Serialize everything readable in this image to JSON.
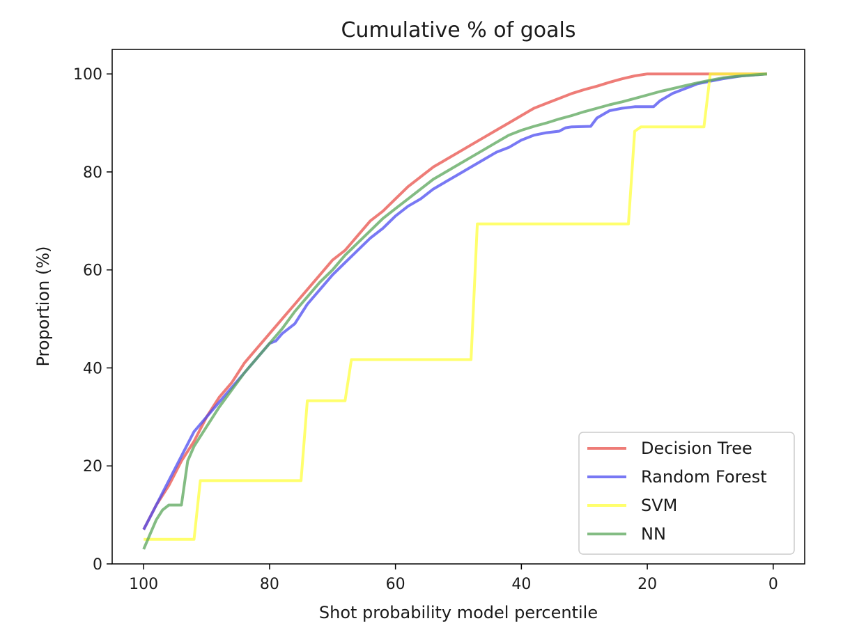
{
  "chart_data": {
    "type": "line",
    "title": "Cumulative % of goals",
    "xlabel": "Shot probability model percentile",
    "ylabel": "Proportion (%)",
    "xlim": [
      105,
      -5
    ],
    "ylim": [
      0,
      105
    ],
    "x_reversed": true,
    "xticks": [
      100,
      80,
      60,
      40,
      20,
      0
    ],
    "yticks": [
      0,
      20,
      40,
      60,
      80,
      100
    ],
    "grid": false,
    "legend_position": "lower-right",
    "series": [
      {
        "name": "Decision Tree",
        "color": "#e8504a",
        "x": [
          100,
          98,
          96,
          94,
          92,
          90,
          88,
          86,
          84,
          82,
          80,
          78,
          76,
          74,
          72,
          70,
          68,
          67,
          66,
          64,
          62,
          60,
          58,
          56,
          54,
          52,
          50,
          48,
          46,
          44,
          42,
          40,
          38,
          36,
          34,
          32,
          30,
          28,
          26,
          24,
          22,
          20,
          18,
          15,
          10,
          5,
          1
        ],
        "y": [
          7,
          12,
          16,
          21,
          25,
          30,
          34,
          37,
          41,
          44,
          47,
          50,
          53,
          56,
          59,
          62,
          64,
          65.5,
          67,
          70,
          72,
          74.5,
          77,
          79,
          81,
          82.5,
          84,
          85.5,
          87,
          88.5,
          90,
          91.5,
          93,
          94,
          95,
          96,
          96.8,
          97.5,
          98.3,
          99,
          99.6,
          100,
          100,
          100,
          100,
          100,
          100
        ]
      },
      {
        "name": "Random Forest",
        "color": "#4b4bf0",
        "x": [
          100,
          98,
          96,
          94,
          92,
          90,
          88,
          86,
          84,
          82,
          80,
          79,
          78,
          76,
          74,
          72,
          70,
          68,
          66,
          64,
          62,
          60,
          58,
          56,
          54,
          52,
          50,
          48,
          46,
          44,
          42,
          40,
          38,
          36,
          34,
          33,
          32,
          29,
          28,
          26,
          24,
          22,
          21,
          19,
          18,
          16,
          14,
          12,
          10,
          8,
          5,
          1
        ],
        "y": [
          7,
          12,
          17,
          22,
          27,
          30,
          33,
          36,
          39,
          42,
          45,
          45.5,
          47,
          49,
          53,
          56,
          59,
          61.5,
          64,
          66.5,
          68.5,
          71,
          73,
          74.5,
          76.5,
          78,
          79.5,
          81,
          82.5,
          84,
          85,
          86.5,
          87.5,
          88,
          88.3,
          89,
          89.2,
          89.3,
          91,
          92.5,
          93,
          93.3,
          93.3,
          93.3,
          94.5,
          96,
          97,
          98,
          98.5,
          99,
          99.6,
          100
        ]
      },
      {
        "name": "SVM",
        "color": "#ffff3c",
        "x": [
          100,
          92,
          91,
          75,
          74,
          68,
          67,
          48,
          47,
          23,
          22,
          21,
          11,
          10,
          1
        ],
        "y": [
          5,
          5,
          17,
          17,
          33.3,
          33.3,
          41.7,
          41.7,
          69.4,
          69.4,
          88.3,
          89.2,
          89.2,
          100,
          100
        ]
      },
      {
        "name": "NN",
        "color": "#5aa55a",
        "x": [
          100,
          99,
          98,
          97,
          96,
          94,
          93,
          92,
          90,
          88,
          86,
          84,
          82,
          80,
          78,
          76,
          74,
          72,
          70,
          68,
          66,
          64,
          62,
          60,
          58,
          56,
          54,
          52,
          50,
          48,
          46,
          44,
          42,
          40,
          38,
          36,
          34,
          32,
          30,
          28,
          26,
          24,
          22,
          20,
          18,
          16,
          14,
          12,
          10,
          8,
          5,
          1
        ],
        "y": [
          3,
          6,
          9,
          11,
          12,
          12,
          21,
          24,
          28,
          32,
          35.5,
          39,
          42,
          45,
          48,
          51.5,
          54.5,
          57.5,
          60,
          63,
          65.5,
          68,
          70.5,
          72.5,
          74.5,
          76.5,
          78.5,
          80,
          81.5,
          83,
          84.5,
          86,
          87.5,
          88.5,
          89.3,
          90,
          90.8,
          91.5,
          92.3,
          93,
          93.7,
          94.3,
          95,
          95.7,
          96.4,
          97,
          97.6,
          98.2,
          98.7,
          99.2,
          99.6,
          100
        ]
      }
    ]
  }
}
